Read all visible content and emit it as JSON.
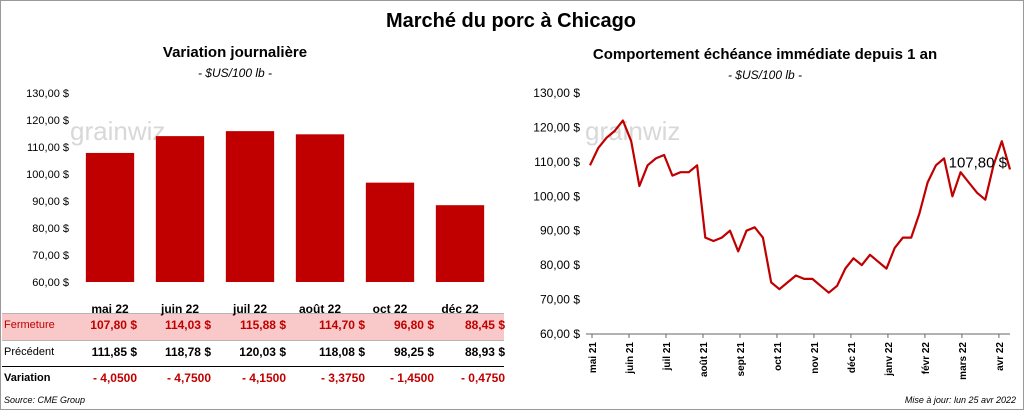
{
  "title": "Marché du porc à Chicago",
  "left_panel": {
    "title": "Variation journalière",
    "subtitle": "- $US/100 lb -"
  },
  "right_panel": {
    "title": "Comportement  échéance immédiate depuis 1 an",
    "subtitle": "- $US/100 lb -"
  },
  "watermark": "grainwiz",
  "table": {
    "rows": [
      {
        "label": "Fermeture",
        "values": [
          "107,80  $",
          "114,03  $",
          "115,88  $",
          "114,70  $",
          "96,80  $",
          "88,45  $"
        ]
      },
      {
        "label": "Précédent",
        "values": [
          "111,85  $",
          "118,78  $",
          "120,03  $",
          "118,08  $",
          "98,25  $",
          "88,93  $"
        ]
      },
      {
        "label": "Variation",
        "values": [
          "- 4,0500",
          "- 4,7500",
          "- 4,1500",
          "- 3,3750",
          "- 1,4500",
          "- 0,4750"
        ]
      }
    ]
  },
  "source": "Source: CME Group",
  "updated": "Mise à jour: lun 25 avr 2022",
  "colors": {
    "bar": "#c00000",
    "line": "#c00000",
    "fermeture_text": "#c00000",
    "variation_text": "#c00000",
    "fermeture_bg": "#f9c8c8"
  },
  "chart_data": [
    {
      "type": "bar",
      "categories": [
        "mai 22",
        "juin 22",
        "juil 22",
        "août 22",
        "oct 22",
        "déc 22"
      ],
      "values": [
        107.8,
        114.03,
        115.88,
        114.7,
        96.8,
        88.45
      ],
      "ylim": [
        60,
        130
      ],
      "yticks": [
        "60,00 $",
        "70,00 $",
        "80,00 $",
        "90,00 $",
        "100,00 $",
        "110,00 $",
        "120,00 $",
        "130,00 $"
      ],
      "grid": false
    },
    {
      "type": "line",
      "x": [
        "mai 21",
        "",
        "",
        "",
        "",
        "juin 21",
        "",
        "",
        "",
        "juil 21",
        "",
        "",
        "",
        "",
        "août 21",
        "",
        "",
        "",
        "sept 21",
        "",
        "",
        "",
        "oct 21",
        "",
        "",
        "",
        "",
        "nov 21",
        "",
        "",
        "",
        "déc 21",
        "",
        "",
        "",
        "",
        "janv 22",
        "",
        "",
        "",
        "févr 22",
        "",
        "",
        "",
        "mars 22",
        "",
        "",
        "",
        "",
        "avr 22",
        "",
        ""
      ],
      "values": [
        109,
        114,
        117,
        119,
        122,
        116,
        103,
        109,
        111,
        112,
        106,
        107,
        107,
        109,
        88,
        87,
        88,
        90,
        84,
        90,
        91,
        88,
        75,
        73,
        75,
        77,
        76,
        76,
        74,
        72,
        74,
        79,
        82,
        80,
        83,
        81,
        79,
        85,
        88,
        88,
        95,
        104,
        109,
        111,
        100,
        107,
        104,
        101,
        99,
        109,
        116,
        107.8
      ],
      "xticks": [
        "mai 21",
        "juin 21",
        "juil 21",
        "août 21",
        "sept 21",
        "oct 21",
        "nov 21",
        "déc 21",
        "janv 22",
        "févr 22",
        "mars 22",
        "avr 22"
      ],
      "ylim": [
        60,
        130
      ],
      "yticks": [
        "60,00 $",
        "70,00 $",
        "80,00 $",
        "90,00 $",
        "100,00 $",
        "110,00 $",
        "120,00 $",
        "130,00 $"
      ],
      "last_label": "107,80 $",
      "grid": false
    }
  ]
}
